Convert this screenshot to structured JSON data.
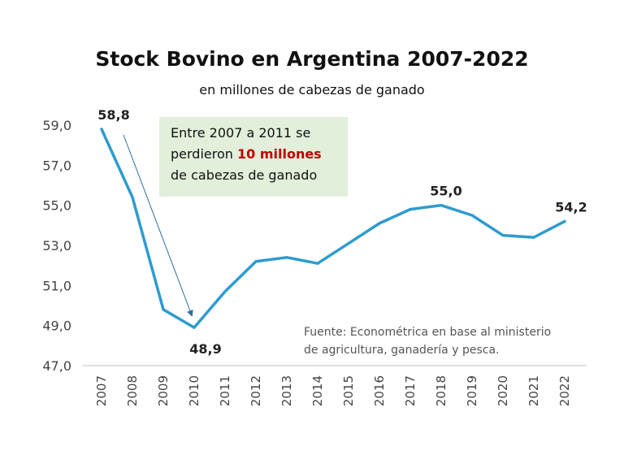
{
  "chart_data": {
    "type": "line",
    "title": "Stock Bovino en Argentina 2007-2022",
    "subtitle": "en millones de cabezas de ganado",
    "x": [
      "2007",
      "2008",
      "2009",
      "2010",
      "2011",
      "2012",
      "2013",
      "2014",
      "2015",
      "2016",
      "2017",
      "2018",
      "2019",
      "2020",
      "2021",
      "2022"
    ],
    "series": [
      {
        "values": [
          58.8,
          55.4,
          49.8,
          48.9,
          50.7,
          52.2,
          52.4,
          52.1,
          53.1,
          54.1,
          54.8,
          55.0,
          54.5,
          53.5,
          53.4,
          54.2
        ]
      }
    ],
    "y_ticks": [
      "59,0",
      "57,0",
      "55,0",
      "53,0",
      "51,0",
      "49,0",
      "47,0"
    ],
    "ylim": [
      47,
      59
    ],
    "grid": false,
    "line_color": "#2e9bd0",
    "data_labels": [
      {
        "x": "2007",
        "text": "58,8"
      },
      {
        "x": "2010",
        "text": "48,9"
      },
      {
        "x": "2018",
        "text": "55,0"
      },
      {
        "x": "2022",
        "text": "54,2"
      }
    ],
    "annotation": {
      "line1": "Entre 2007 a 2011 se",
      "line2_prefix": "perdieron ",
      "line2_highlight": "10 millones",
      "line3": "de cabezas de ganado",
      "highlight_color": "#c00000",
      "box_color": "#e2efda"
    },
    "source_line1": "Fuente: Econométrica en base al ministerio",
    "source_line2": "de agricultura, ganadería y pesca."
  }
}
